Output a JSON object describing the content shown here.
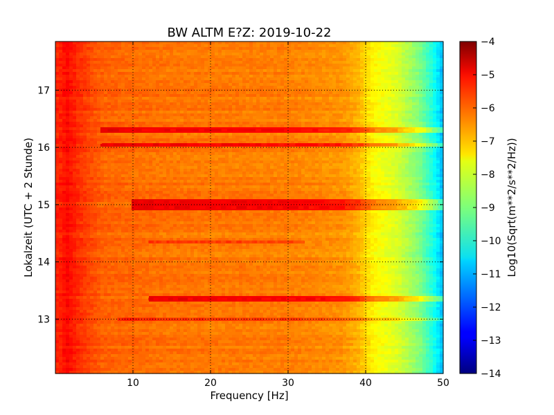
{
  "chart_data": {
    "type": "heatmap",
    "title": "BW ALTM E?Z: 2019-10-22",
    "xlabel": "Frequency [Hz]",
    "ylabel": "Lokalzeit (UTC + 2 Stunde)",
    "colorbar_label": "Log10(Sqrt(m**2/s**2/Hz))",
    "xlim": [
      0,
      50
    ],
    "ylim": [
      17.85,
      12.05
    ],
    "x_ticks": [
      10,
      20,
      30,
      40,
      50
    ],
    "y_ticks": [
      13,
      14,
      15,
      16,
      17
    ],
    "colorbar_range": [
      -14,
      -4
    ],
    "colorbar_ticks": [
      -4,
      -5,
      -6,
      -7,
      -8,
      -9,
      -10,
      -11,
      -12,
      -13,
      -14
    ],
    "colormap": "jet",
    "grid": "dotted",
    "colorbar_position": "right",
    "background_level": -6.5,
    "frequency_profile": [
      {
        "hz": 0.5,
        "level": -5.6
      },
      {
        "hz": 1.5,
        "level": -5.3
      },
      {
        "hz": 3,
        "level": -5.7
      },
      {
        "hz": 6,
        "level": -6.2
      },
      {
        "hz": 15,
        "level": -6.4
      },
      {
        "hz": 30,
        "level": -6.5
      },
      {
        "hz": 37,
        "level": -6.7
      },
      {
        "hz": 39,
        "level": -7.0
      },
      {
        "hz": 41,
        "level": -7.7
      },
      {
        "hz": 44,
        "level": -8.1
      },
      {
        "hz": 47,
        "level": -9.0
      },
      {
        "hz": 49,
        "level": -10.2
      },
      {
        "hz": 50,
        "level": -11.0
      }
    ],
    "bands": [
      {
        "time": 13.0,
        "hz_from": 8,
        "hz_to": 50,
        "level": -5.8
      },
      {
        "time": 13.35,
        "hz_from": 12,
        "hz_to": 50,
        "level": -5.2
      },
      {
        "time": 14.35,
        "hz_from": 12,
        "hz_to": 32,
        "level": -5.9
      },
      {
        "time": 14.95,
        "hz_from": 10,
        "hz_to": 50,
        "level": -5.2
      },
      {
        "time": 15.05,
        "hz_from": 10,
        "hz_to": 50,
        "level": -5.2
      },
      {
        "time": 16.05,
        "hz_from": 6,
        "hz_to": 50,
        "level": -5.3
      },
      {
        "time": 16.3,
        "hz_from": 6,
        "hz_to": 50,
        "level": -5.3
      }
    ]
  }
}
